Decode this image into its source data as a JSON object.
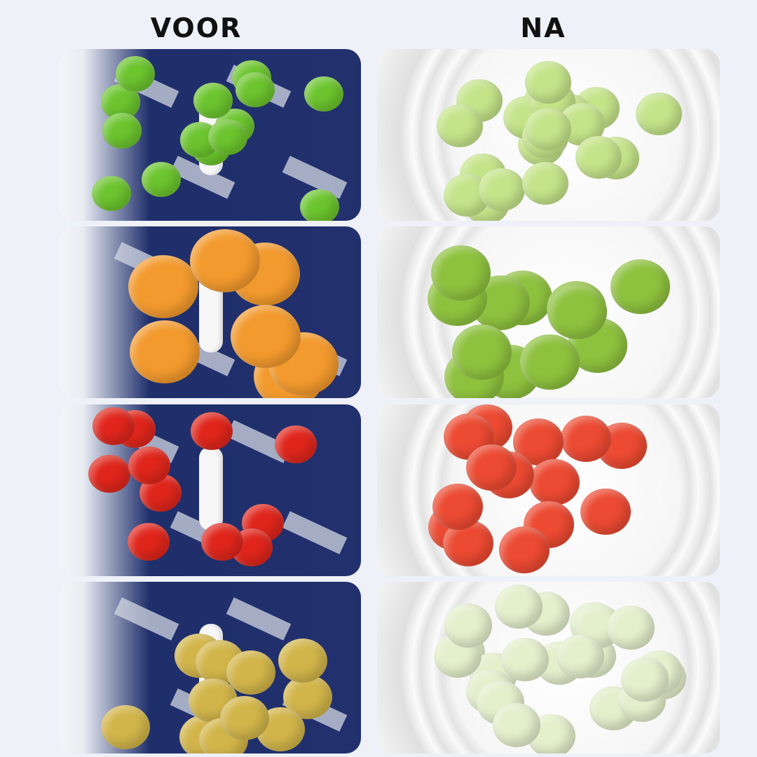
{
  "headings": {
    "before": "VOOR",
    "after": "NA"
  },
  "rows": [
    {
      "fruit": "grapes",
      "before_color": "#6cc52e",
      "after_color": "#c5e48a"
    },
    {
      "fruit": "apricots-limes",
      "before_color": "#f39a2e",
      "after_color": "#8ec13e"
    },
    {
      "fruit": "cherry-tomatoes",
      "before_color": "#e0261c",
      "after_color": "#ec4a32"
    },
    {
      "fruit": "jujubes",
      "before_color": "#d2b54a",
      "after_color": "#e4efcc"
    }
  ]
}
